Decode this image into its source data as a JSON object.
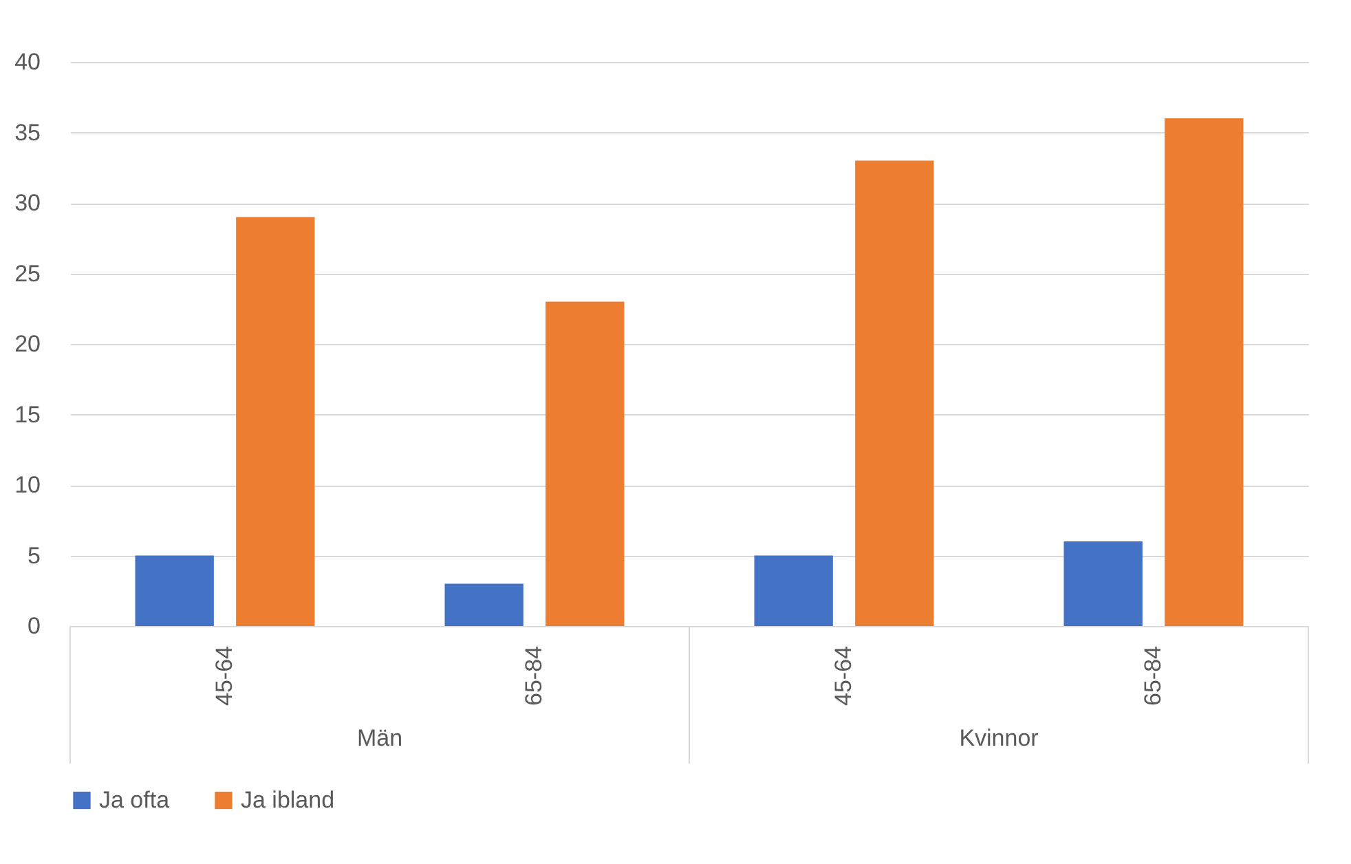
{
  "chart_data": {
    "type": "bar",
    "categories": [
      "45-64",
      "65-84",
      "45-64",
      "65-84"
    ],
    "series": [
      {
        "name": "Ja ofta",
        "color": "#4472c4",
        "values": [
          5,
          3,
          5,
          6
        ]
      },
      {
        "name": "Ja ibland",
        "color": "#ed7d31",
        "values": [
          29,
          23,
          33,
          36
        ]
      }
    ],
    "annotations": [
      "Män",
      "Kvinnor"
    ],
    "ylim": [
      0,
      40
    ],
    "yticks": [
      0,
      5,
      10,
      15,
      20,
      25,
      30,
      35,
      40
    ],
    "grid": "y",
    "legend": "bottom"
  }
}
